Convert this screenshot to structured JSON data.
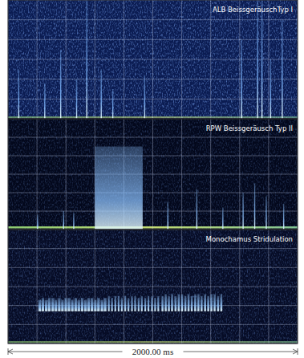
{
  "chart_data": [
    {
      "type": "spectrogram",
      "title": "ALB BeissgeräuschTyp I",
      "color": "#7fb8ff",
      "grid": true,
      "tick_labels": false,
      "xlim": [
        0,
        2000
      ],
      "xticks": [
        0,
        200,
        400,
        600,
        800,
        1000,
        1200,
        1400,
        1600,
        1800,
        2000
      ],
      "ylim": [
        0,
        6
      ],
      "yticks": [
        0,
        1,
        2,
        3,
        4,
        5,
        6
      ],
      "x": [
        70,
        250,
        360,
        470,
        540,
        640,
        720,
        940,
        1610,
        1720,
        1750,
        1810,
        1890
      ],
      "durations": [
        6,
        5,
        5,
        6,
        5,
        5,
        5,
        5,
        6,
        6,
        8,
        5,
        6
      ],
      "values": [
        2.5,
        1.8,
        3.5,
        2.0,
        6,
        2.5,
        1.5,
        2.2,
        4.0,
        6,
        6,
        3.0,
        5.0
      ]
    },
    {
      "type": "spectrogram",
      "title": "RPW Beissgeräusch Typ II",
      "color": "#8cc2ff",
      "grid": true,
      "tick_labels": false,
      "xlim": [
        0,
        2000
      ],
      "xticks": [
        0,
        200,
        400,
        600,
        800,
        1000,
        1200,
        1400,
        1600,
        1800,
        2000
      ],
      "ylim": [
        0,
        6
      ],
      "yticks": [
        0,
        1,
        2,
        3,
        4,
        5,
        6
      ],
      "x": [
        200,
        380,
        450,
        600,
        1100,
        1300,
        1480,
        1620,
        1700,
        1780,
        1900
      ],
      "durations": [
        5,
        5,
        5,
        330,
        6,
        6,
        6,
        6,
        6,
        6,
        6
      ],
      "values": [
        0.8,
        1.0,
        0.9,
        4.5,
        1.5,
        2.2,
        1.2,
        2.0,
        2.5,
        1.8,
        1.4
      ]
    },
    {
      "type": "spectrogram",
      "title": "Monochamus Stridulation",
      "color": "#93c8ff",
      "grid": true,
      "tick_labels": false,
      "xlabel": "2000.00 ms",
      "xlim": [
        0,
        2000
      ],
      "xticks": [
        0,
        200,
        400,
        600,
        800,
        1000,
        1200,
        1400,
        1600,
        1800,
        2000
      ],
      "ylim": [
        0,
        6
      ],
      "yticks": [
        0,
        1,
        2,
        3,
        4,
        5,
        6
      ],
      "x": [
        210,
        232,
        255,
        276,
        300,
        322,
        345,
        367,
        390,
        412,
        435,
        458,
        480,
        503,
        526,
        548,
        571,
        594,
        616,
        640,
        662,
        690,
        712,
        735,
        758,
        780,
        804,
        826,
        850,
        872,
        896,
        918,
        942,
        964,
        988,
        1010,
        1032,
        1060,
        1082,
        1104,
        1126,
        1150,
        1172,
        1195,
        1218,
        1240,
        1262,
        1286,
        1308,
        1330,
        1354,
        1376,
        1398,
        1420,
        1444,
        1466
      ],
      "durations": [
        18,
        18,
        18,
        18,
        18,
        18,
        18,
        18,
        18,
        18,
        18,
        18,
        18,
        18,
        18,
        18,
        18,
        18,
        18,
        18,
        18,
        12,
        12,
        12,
        12,
        12,
        12,
        12,
        12,
        12,
        12,
        12,
        12,
        12,
        12,
        12,
        12,
        14,
        14,
        14,
        14,
        14,
        14,
        14,
        14,
        14,
        14,
        14,
        14,
        14,
        14,
        14,
        14,
        14,
        14,
        14
      ],
      "values": [
        2.3,
        2.4,
        2.3,
        2.4,
        2.4,
        2.3,
        2.4,
        2.3,
        2.4,
        2.4,
        2.3,
        2.4,
        2.3,
        2.4,
        2.3,
        2.4,
        2.4,
        2.3,
        2.4,
        2.3,
        2.4,
        2.5,
        2.4,
        2.5,
        2.5,
        2.4,
        2.5,
        2.4,
        2.5,
        2.5,
        2.4,
        2.5,
        2.4,
        2.5,
        2.5,
        2.4,
        2.5,
        2.5,
        2.6,
        2.5,
        2.6,
        2.5,
        2.6,
        2.6,
        2.5,
        2.6,
        2.5,
        2.6,
        2.6,
        2.5,
        2.6,
        2.5,
        2.6,
        2.6,
        2.5,
        2.6
      ],
      "lows": [
        1.7,
        1.7,
        1.7,
        1.7,
        1.7,
        1.7,
        1.7,
        1.7,
        1.7,
        1.7,
        1.7,
        1.7,
        1.7,
        1.7,
        1.7,
        1.7,
        1.7,
        1.7,
        1.7,
        1.7,
        1.7,
        1.7,
        1.7,
        1.7,
        1.7,
        1.7,
        1.7,
        1.7,
        1.7,
        1.7,
        1.7,
        1.7,
        1.7,
        1.7,
        1.7,
        1.7,
        1.7,
        1.7,
        1.7,
        1.7,
        1.7,
        1.7,
        1.7,
        1.7,
        1.7,
        1.7,
        1.7,
        1.7,
        1.7,
        1.7,
        1.7,
        1.7,
        1.7,
        1.7,
        1.7,
        1.7
      ]
    }
  ]
}
